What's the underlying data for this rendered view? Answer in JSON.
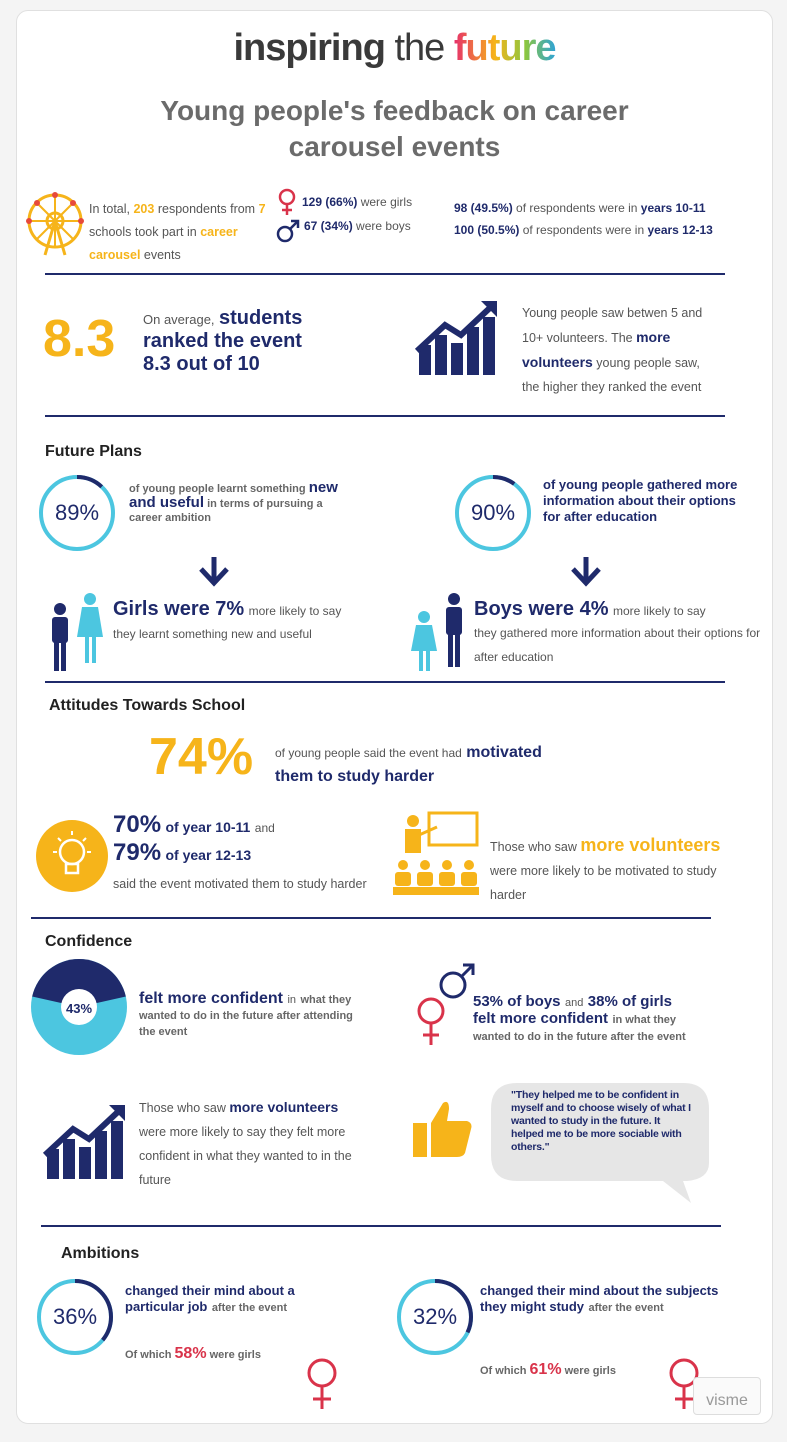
{
  "logo": {
    "part1": "inspiring",
    "part2": "the",
    "part3": "future"
  },
  "title": "Young people's feedback on career carousel events",
  "intro": {
    "total_pre": "In total,",
    "total": "203",
    "total_mid": "respondents from",
    "schools": "7",
    "schools_post": "schools took part in",
    "event": "career carousel",
    "event_post": "events",
    "girls_num": "129 (66%)",
    "girls_txt": "were girls",
    "boys_num": "67 (34%)",
    "boys_txt": "were boys",
    "y1011_num": "98 (49.5%)",
    "y1011_txt": "of respondents were in",
    "y1011_yrs": "years 10-11",
    "y1213_num": "100 (50.5%)",
    "y1213_txt": "of respondents were in",
    "y1213_yrs": "years 12-13"
  },
  "rank": {
    "big": "8.3",
    "pre": "On average,",
    "bold1": "students",
    "bold2": "ranked the event",
    "bold3": "8.3 out of 10",
    "vol_1": "Young people saw betwen 5 and 10+ volunteers. The",
    "vol_bold": "more volunteers",
    "vol_2": "young people saw, the higher they ranked the event"
  },
  "future": {
    "heading": "Future Plans",
    "left_pct": "89%",
    "left_1": "of young people learnt something",
    "left_bold": "new and useful",
    "left_2": "in terms of pursuing a career ambition",
    "right_pct": "90%",
    "right_txt": "of young people gathered more information about their options for after education",
    "girls_bold": "Girls were 7%",
    "girls_txt1": "more likely to say",
    "girls_txt2": "they learnt something new and useful",
    "boys_bold": "Boys were 4%",
    "boys_txt1": "more likely to say",
    "boys_txt2": "they gathered more information about their options for after education",
    "left_fraction": 0.89,
    "right_fraction": 0.9
  },
  "attitudes": {
    "heading": "Attitudes Towards School",
    "big": "74%",
    "txt1": "of young people said the event had",
    "bold1": "motivated",
    "bold2": "them to study harder",
    "y1011_pct": "70%",
    "y1011_txt": "of year 10-11",
    "and": "and",
    "y1213_pct": "79%",
    "y1213_txt": "of year 12-13",
    "motiv_txt": "said the event motivated them to study harder",
    "vol_1": "Those who saw",
    "vol_bold": "more volunteers",
    "vol_2": "were more likely to be motivated to study harder"
  },
  "confidence": {
    "heading": "Confidence",
    "pie_pct": "43%",
    "pie_fraction": 0.43,
    "bold": "felt more confident",
    "in": "in",
    "txt": "what they wanted to do in the future after attending the event",
    "boys": "53% of boys",
    "and": "and",
    "girls": "38% of girls",
    "bold2": "felt more confident",
    "in2": "in what they",
    "txt2": "wanted to do in the future after the event",
    "vol_1": "Those who saw",
    "vol_bold": "more volunteers",
    "vol_2": "were more likely to say they felt more confident in what they wanted to in the future",
    "quote": "\"They helped me to be confident in myself and to choose wisely of what I wanted to study in the future. It helped me to be more sociable with others.\""
  },
  "ambitions": {
    "heading": "Ambitions",
    "left_pct": "36%",
    "left_fraction": 0.36,
    "left_bold": "changed their mind about a particular job",
    "left_txt": "after the event",
    "left_which": "Of which",
    "left_girls": "58%",
    "left_were": "were girls",
    "right_pct": "32%",
    "right_fraction": 0.32,
    "right_bold": "changed their mind about the subjects they might study",
    "right_txt": "after the event",
    "right_which": "Of which",
    "right_girls": "61%",
    "right_were": "were girls"
  },
  "watermark": "visme",
  "colors": {
    "navy": "#1f2a6b",
    "gold": "#f6b41a",
    "red": "#d9334a",
    "cyan": "#4cc6e0"
  }
}
